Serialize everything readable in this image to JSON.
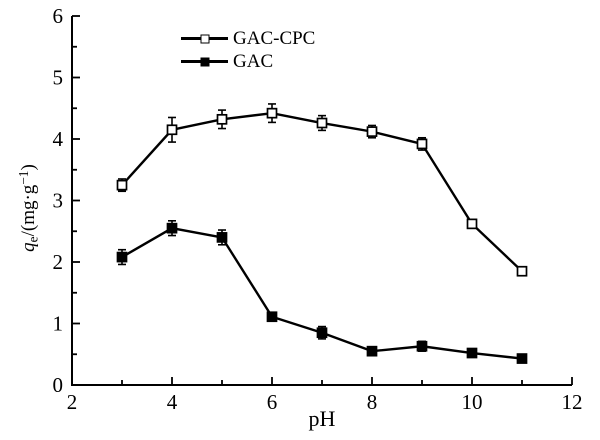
{
  "chart_data": {
    "type": "line",
    "title": "",
    "xlabel": "pH",
    "ylabel": "qe/(mg·g−1)",
    "ylabel_parts": {
      "var": "q",
      "sub": "e",
      "mid": "/(mg·g",
      "sup": "−1",
      "end": ")"
    },
    "xlim": [
      2,
      12
    ],
    "ylim": [
      0,
      6
    ],
    "x_major_ticks": [
      2,
      4,
      6,
      8,
      10,
      12
    ],
    "x_minor_ticks": [
      3,
      5,
      7,
      9,
      11
    ],
    "y_major_ticks": [
      0,
      1,
      2,
      3,
      4,
      5,
      6
    ],
    "y_minor_step": 0.5,
    "grid": false,
    "background": "#ffffff",
    "line_color": "#000000",
    "x": [
      3,
      4,
      5,
      6,
      7,
      8,
      9,
      10,
      11
    ],
    "series": [
      {
        "name": "GAC-CPC",
        "marker": "open-square",
        "color": "#000000",
        "values": [
          3.25,
          4.15,
          4.32,
          4.42,
          4.26,
          4.12,
          3.92,
          2.62,
          1.85
        ],
        "errors": [
          0.1,
          0.2,
          0.15,
          0.15,
          0.12,
          0.1,
          0.1,
          0.04,
          0.04
        ]
      },
      {
        "name": "GAC",
        "marker": "filled-square",
        "color": "#000000",
        "values": [
          2.08,
          2.55,
          2.4,
          1.11,
          0.85,
          0.55,
          0.63,
          0.52,
          0.43
        ],
        "errors": [
          0.12,
          0.12,
          0.12,
          0.04,
          0.1,
          0.05,
          0.08,
          0.05,
          0.05
        ]
      }
    ],
    "legend": {
      "position": "top-left-of-plot",
      "entries": [
        "GAC-CPC",
        "GAC"
      ]
    }
  }
}
